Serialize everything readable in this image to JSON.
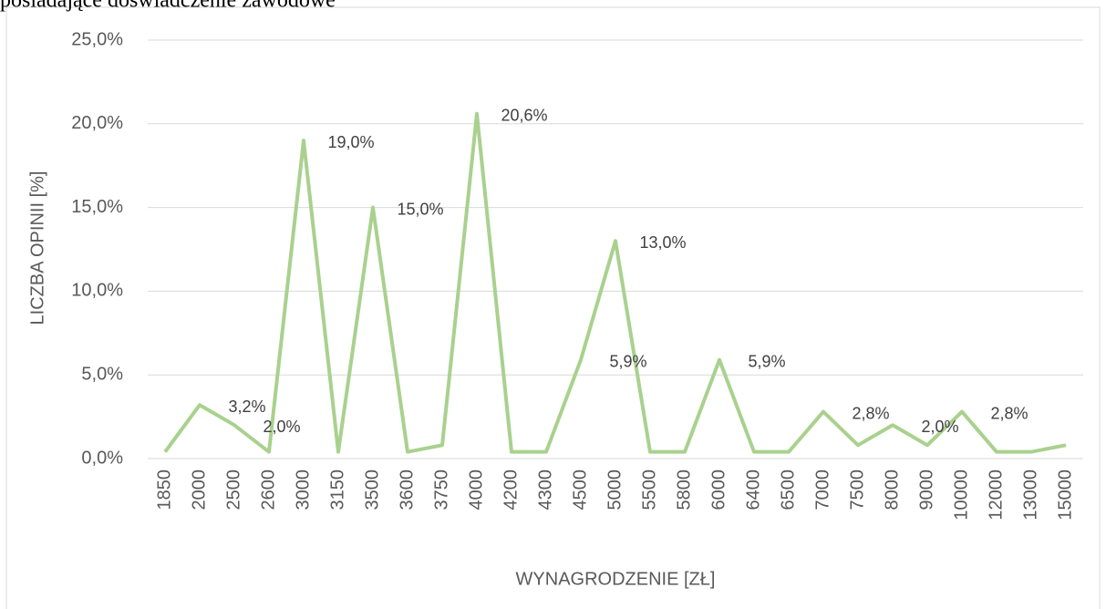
{
  "header_text": "posiadające doświadczenie zawodowe",
  "chart_data": {
    "type": "line",
    "x_label": "WYNAGRODZENIE [ZŁ]",
    "y_label": "LICZBA  OPINII [%]",
    "categories": [
      "1850",
      "2000",
      "2500",
      "2600",
      "3000",
      "3150",
      "3500",
      "3600",
      "3750",
      "4000",
      "4200",
      "4300",
      "4500",
      "5000",
      "5500",
      "5800",
      "6000",
      "6400",
      "6500",
      "7000",
      "7500",
      "8000",
      "9000",
      "10000",
      "12000",
      "13000",
      "15000"
    ],
    "values": [
      0.4,
      3.2,
      2.0,
      0.4,
      19.0,
      0.4,
      15.0,
      0.4,
      0.8,
      20.6,
      0.4,
      0.4,
      5.9,
      13.0,
      0.4,
      0.4,
      5.9,
      0.4,
      0.4,
      2.8,
      0.8,
      2.0,
      0.8,
      2.8,
      0.4,
      0.4,
      0.8
    ],
    "value_labels": [
      null,
      "3,2%",
      "2,0%",
      null,
      "19,0%",
      null,
      "15,0%",
      null,
      null,
      "20,6%",
      null,
      null,
      "5,9%",
      "13,0%",
      null,
      null,
      "5,9%",
      null,
      null,
      "2,8%",
      null,
      "2,0%",
      null,
      "2,8%",
      null,
      null,
      null
    ],
    "color": "#a9d18e",
    "ylim": [
      0,
      25
    ],
    "yticks": [
      {
        "value": 0,
        "label": "0,0%"
      },
      {
        "value": 5,
        "label": "5,0%"
      },
      {
        "value": 10,
        "label": "10,0%"
      },
      {
        "value": 15,
        "label": "15,0%"
      },
      {
        "value": 20,
        "label": "20,0%"
      },
      {
        "value": 25,
        "label": "25,0%"
      }
    ],
    "grid": true
  }
}
